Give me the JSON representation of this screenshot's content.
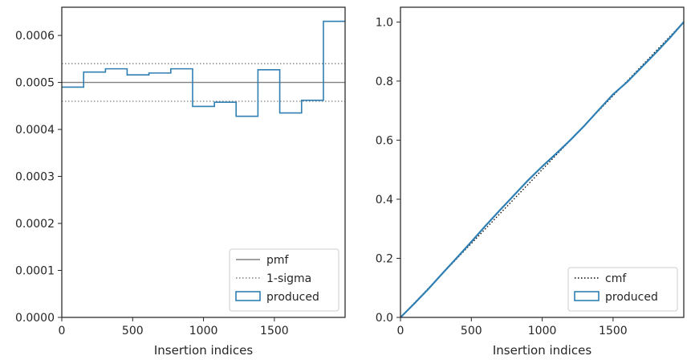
{
  "chart_data": [
    {
      "type": "histogram-step",
      "xlabel": "Insertion indices",
      "ylabel": "",
      "xlim": [
        0,
        1999
      ],
      "ylim": [
        0,
        0.00066
      ],
      "xticks": [
        "0",
        "500",
        "1000",
        "1500"
      ],
      "yticks": [
        "0.0000",
        "0.0001",
        "0.0002",
        "0.0003",
        "0.0004",
        "0.0005",
        "0.0006"
      ],
      "reference_lines": [
        {
          "name": "pmf",
          "y": 0.0005,
          "style": "solid",
          "color": "#808080"
        },
        {
          "name": "1-sigma",
          "y": 0.00054,
          "style": "dotted",
          "color": "#808080"
        },
        {
          "name": "1-sigma",
          "y": 0.00046,
          "style": "dotted",
          "color": "#808080"
        }
      ],
      "series": [
        {
          "name": "produced",
          "color": "#2f7fb3",
          "bin_edges": [
            0,
            154,
            308,
            461,
            615,
            769,
            923,
            1077,
            1230,
            1384,
            1538,
            1692,
            1846,
            1999
          ],
          "values": [
            0.00049,
            0.000522,
            0.000529,
            0.000516,
            0.00052,
            0.000529,
            0.000449,
            0.000458,
            0.000428,
            0.000527,
            0.000435,
            0.000462,
            0.00063
          ]
        }
      ],
      "legend": {
        "position": "lower right",
        "entries": [
          "pmf",
          "1-sigma",
          "produced"
        ]
      }
    },
    {
      "type": "line",
      "xlabel": "Insertion indices",
      "ylabel": "",
      "xlim": [
        0,
        1999
      ],
      "ylim": [
        0,
        1.05
      ],
      "xticks": [
        "0",
        "500",
        "1000",
        "1500"
      ],
      "yticks": [
        "0.0",
        "0.2",
        "0.4",
        "0.6",
        "0.8",
        "1.0"
      ],
      "series": [
        {
          "name": "cmf",
          "style": "dotted",
          "color": "#000000",
          "x": [
            0,
            1999
          ],
          "y": [
            0,
            1.0
          ]
        },
        {
          "name": "produced",
          "style": "solid",
          "color": "#2f7fb3",
          "x": [
            0,
            100,
            200,
            300,
            400,
            500,
            600,
            700,
            800,
            900,
            1000,
            1100,
            1200,
            1300,
            1400,
            1500,
            1600,
            1700,
            1800,
            1900,
            1999
          ],
          "y": [
            0,
            0.048,
            0.098,
            0.151,
            0.203,
            0.256,
            0.31,
            0.362,
            0.413,
            0.464,
            0.511,
            0.555,
            0.601,
            0.65,
            0.703,
            0.755,
            0.797,
            0.846,
            0.895,
            0.946,
            1.0
          ]
        }
      ],
      "legend": {
        "position": "lower right",
        "entries": [
          "cmf",
          "produced"
        ]
      }
    }
  ]
}
